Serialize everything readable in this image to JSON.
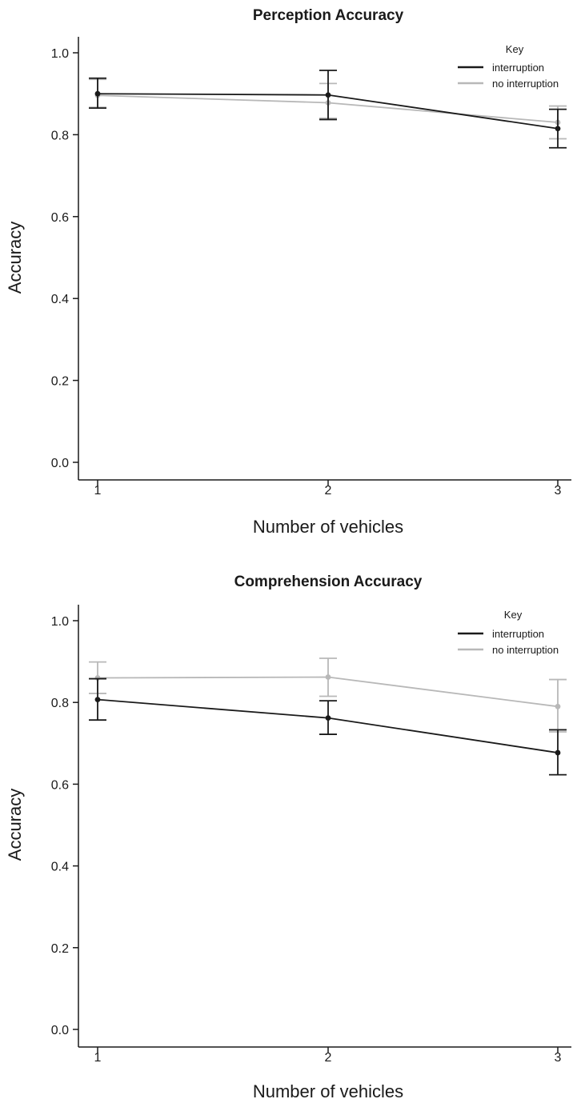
{
  "chart_data": [
    {
      "type": "line",
      "title": "Perception Accuracy",
      "xlabel": "Number of vehicles",
      "ylabel": "Accuracy",
      "categories": [
        "1",
        "2",
        "3"
      ],
      "y_ticks": [
        "0.0",
        "0.2",
        "0.4",
        "0.6",
        "0.8",
        "1.0"
      ],
      "ylim": [
        0,
        1.0
      ],
      "legend": {
        "title": "Key",
        "placement": "top-right"
      },
      "series": [
        {
          "name": "interruption",
          "color": "#1a1a1a",
          "values": [
            0.9,
            0.897,
            0.815
          ],
          "error_low": [
            0.865,
            0.837,
            0.768
          ],
          "error_high": [
            0.938,
            0.957,
            0.862
          ]
        },
        {
          "name": "no interruption",
          "color": "#b8b8b8",
          "values": [
            0.896,
            0.878,
            0.83
          ],
          "error_low": [
            0.867,
            0.84,
            0.79
          ],
          "error_high": [
            0.935,
            0.925,
            0.87
          ]
        }
      ]
    },
    {
      "type": "line",
      "title": "Comprehension Accuracy",
      "xlabel": "Number of vehicles",
      "ylabel": "Accuracy",
      "categories": [
        "1",
        "2",
        "3"
      ],
      "y_ticks": [
        "0.0",
        "0.2",
        "0.4",
        "0.6",
        "0.8",
        "1.0"
      ],
      "ylim": [
        0,
        1.0
      ],
      "legend": {
        "title": "Key",
        "placement": "top-right"
      },
      "series": [
        {
          "name": "interruption",
          "color": "#1a1a1a",
          "values": [
            0.807,
            0.762,
            0.677
          ],
          "error_low": [
            0.757,
            0.722,
            0.623
          ],
          "error_high": [
            0.858,
            0.804,
            0.733
          ]
        },
        {
          "name": "no interruption",
          "color": "#b8b8b8",
          "values": [
            0.86,
            0.862,
            0.79
          ],
          "error_low": [
            0.822,
            0.815,
            0.728
          ],
          "error_high": [
            0.899,
            0.908,
            0.856
          ]
        }
      ]
    }
  ]
}
